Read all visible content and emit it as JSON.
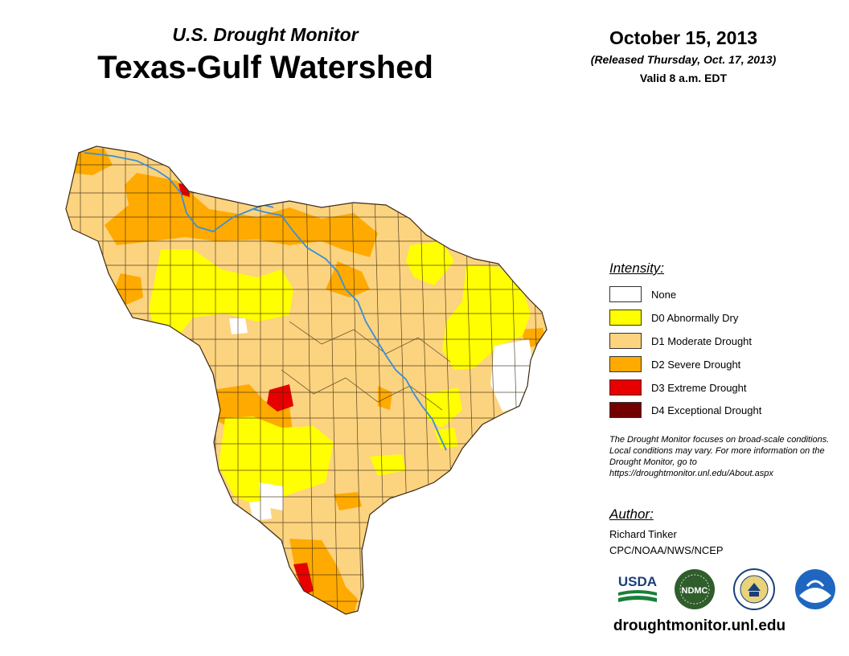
{
  "header": {
    "subtitle": "U.S. Drought Monitor",
    "title": "Texas-Gulf Watershed",
    "date": "October 15, 2013",
    "released": "(Released Thursday, Oct. 17, 2013)",
    "valid": "Valid 8 a.m. EDT"
  },
  "legend": {
    "title": "Intensity:",
    "items": [
      {
        "label": "None",
        "color": "#ffffff"
      },
      {
        "label": "D0 Abnormally Dry",
        "color": "#ffff00"
      },
      {
        "label": "D1 Moderate Drought",
        "color": "#fcd37f"
      },
      {
        "label": "D2 Severe Drought",
        "color": "#ffaa00"
      },
      {
        "label": "D3 Extreme Drought",
        "color": "#e60000"
      },
      {
        "label": "D4 Exceptional Drought",
        "color": "#730000"
      }
    ]
  },
  "note": "The Drought Monitor focuses on broad-scale conditions. Local conditions may vary. For more information on the Drought Monitor, go to https://droughtmonitor.unl.edu/About.aspx",
  "author": {
    "title": "Author:",
    "name": "Richard Tinker",
    "org": "CPC/NOAA/NWS/NCEP"
  },
  "logos": {
    "usda": "USDA",
    "ndmc": "NDMC"
  },
  "footer": {
    "url": "droughtmonitor.unl.edu"
  },
  "map": {
    "region": "Texas-Gulf Watershed",
    "river_color": "#3a8fd6",
    "county_line_color": "#3b2a14"
  }
}
